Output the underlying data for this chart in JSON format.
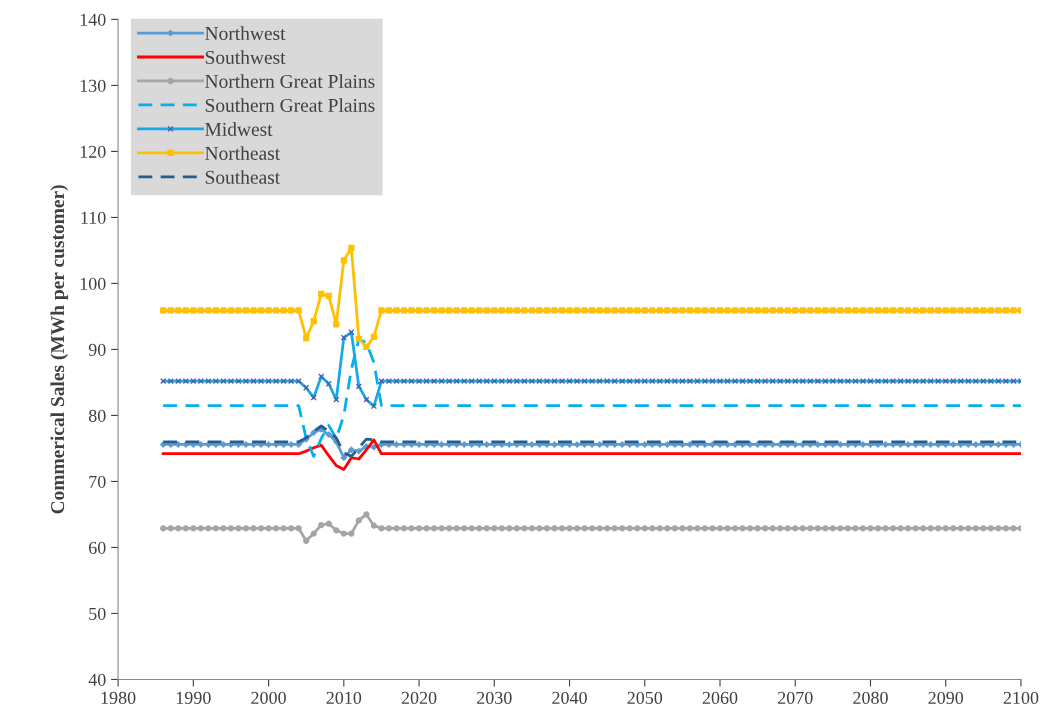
{
  "chart_data": {
    "type": "line",
    "ylabel": "Commerical Sales (MWh per customer)",
    "xlim": [
      1980,
      2100
    ],
    "xticks": [
      1980,
      1990,
      2000,
      2010,
      2020,
      2030,
      2040,
      2050,
      2060,
      2070,
      2080,
      2090,
      2100
    ],
    "ylim": [
      40,
      140
    ],
    "yticks": [
      40,
      50,
      60,
      70,
      80,
      90,
      100,
      110,
      120,
      130,
      140
    ],
    "grid": false,
    "legend": "top left",
    "x": [
      1986,
      1987,
      1988,
      1989,
      1990,
      1991,
      1992,
      1993,
      1994,
      1995,
      1996,
      1997,
      1998,
      1999,
      2000,
      2001,
      2002,
      2003,
      2004,
      2005,
      2006,
      2007,
      2008,
      2009,
      2010,
      2011,
      2012,
      2013,
      2014,
      2015,
      2016,
      2017,
      2018,
      2019,
      2020,
      2021,
      2022,
      2023,
      2024,
      2025,
      2026,
      2027,
      2028,
      2029,
      2030,
      2031,
      2032,
      2033,
      2034,
      2035,
      2036,
      2037,
      2038,
      2039,
      2040,
      2041,
      2042,
      2043,
      2044,
      2045,
      2046,
      2047,
      2048,
      2049,
      2050,
      2051,
      2052,
      2053,
      2054,
      2055,
      2056,
      2057,
      2058,
      2059,
      2060,
      2061,
      2062,
      2063,
      2064,
      2065,
      2066,
      2067,
      2068,
      2069,
      2070,
      2071,
      2072,
      2073,
      2074,
      2075,
      2076,
      2077,
      2078,
      2079,
      2080,
      2081,
      2082,
      2083,
      2084,
      2085,
      2086,
      2087,
      2088,
      2089,
      2090,
      2091,
      2092,
      2093,
      2094,
      2095,
      2096,
      2097,
      2098,
      2099,
      2100
    ],
    "series": [
      {
        "name": "Northwest",
        "color": "#5b9bd5",
        "marker": "diamond",
        "line_style": "solid",
        "values": [
          75.6,
          75.6,
          75.6,
          75.6,
          75.6,
          75.6,
          75.6,
          75.6,
          75.6,
          75.6,
          75.6,
          75.6,
          75.6,
          75.6,
          75.6,
          75.6,
          75.6,
          75.6,
          75.6,
          76.4,
          77.4,
          77.9,
          77.1,
          76.0,
          73.6,
          74.8,
          74.6,
          75.3,
          75.2,
          75.6,
          75.6,
          75.6,
          75.6,
          75.6,
          75.6,
          75.6,
          75.6,
          75.6,
          75.6,
          75.6,
          75.6,
          75.6,
          75.6,
          75.6,
          75.6,
          75.6,
          75.6,
          75.6,
          75.6,
          75.6,
          75.6,
          75.6,
          75.6,
          75.6,
          75.6,
          75.6,
          75.6,
          75.6,
          75.6,
          75.6,
          75.6,
          75.6,
          75.6,
          75.6,
          75.6,
          75.6,
          75.6,
          75.6,
          75.6,
          75.6,
          75.6,
          75.6,
          75.6,
          75.6,
          75.6,
          75.6,
          75.6,
          75.6,
          75.6,
          75.6,
          75.6,
          75.6,
          75.6,
          75.6,
          75.6,
          75.6,
          75.6,
          75.6,
          75.6,
          75.6,
          75.6,
          75.6,
          75.6,
          75.6,
          75.6,
          75.6,
          75.6,
          75.6,
          75.6,
          75.6,
          75.6,
          75.6,
          75.6,
          75.6,
          75.6,
          75.6,
          75.6,
          75.6,
          75.6,
          75.6,
          75.6,
          75.6,
          75.6,
          75.6,
          75.6
        ]
      },
      {
        "name": "Southwest",
        "color": "#ff0000",
        "marker": "none",
        "line_style": "solid",
        "values": [
          74.2,
          74.2,
          74.2,
          74.2,
          74.2,
          74.2,
          74.2,
          74.2,
          74.2,
          74.2,
          74.2,
          74.2,
          74.2,
          74.2,
          74.2,
          74.2,
          74.2,
          74.2,
          74.2,
          74.6,
          75.1,
          75.5,
          73.9,
          72.4,
          71.8,
          73.6,
          73.4,
          74.8,
          76.3,
          74.2,
          74.2,
          74.2,
          74.2,
          74.2,
          74.2,
          74.2,
          74.2,
          74.2,
          74.2,
          74.2,
          74.2,
          74.2,
          74.2,
          74.2,
          74.2,
          74.2,
          74.2,
          74.2,
          74.2,
          74.2,
          74.2,
          74.2,
          74.2,
          74.2,
          74.2,
          74.2,
          74.2,
          74.2,
          74.2,
          74.2,
          74.2,
          74.2,
          74.2,
          74.2,
          74.2,
          74.2,
          74.2,
          74.2,
          74.2,
          74.2,
          74.2,
          74.2,
          74.2,
          74.2,
          74.2,
          74.2,
          74.2,
          74.2,
          74.2,
          74.2,
          74.2,
          74.2,
          74.2,
          74.2,
          74.2,
          74.2,
          74.2,
          74.2,
          74.2,
          74.2,
          74.2,
          74.2,
          74.2,
          74.2,
          74.2,
          74.2,
          74.2,
          74.2,
          74.2,
          74.2,
          74.2,
          74.2,
          74.2,
          74.2,
          74.2,
          74.2,
          74.2,
          74.2,
          74.2,
          74.2,
          74.2,
          74.2,
          74.2,
          74.2,
          74.2
        ]
      },
      {
        "name": "Northern Great Plains",
        "color": "#a5a5a5",
        "marker": "circle",
        "line_style": "solid",
        "values": [
          62.9,
          62.9,
          62.9,
          62.9,
          62.9,
          62.9,
          62.9,
          62.9,
          62.9,
          62.9,
          62.9,
          62.9,
          62.9,
          62.9,
          62.9,
          62.9,
          62.9,
          62.9,
          62.9,
          61.0,
          62.1,
          63.4,
          63.6,
          62.6,
          62.1,
          62.1,
          64.1,
          65.0,
          63.3,
          62.9,
          62.9,
          62.9,
          62.9,
          62.9,
          62.9,
          62.9,
          62.9,
          62.9,
          62.9,
          62.9,
          62.9,
          62.9,
          62.9,
          62.9,
          62.9,
          62.9,
          62.9,
          62.9,
          62.9,
          62.9,
          62.9,
          62.9,
          62.9,
          62.9,
          62.9,
          62.9,
          62.9,
          62.9,
          62.9,
          62.9,
          62.9,
          62.9,
          62.9,
          62.9,
          62.9,
          62.9,
          62.9,
          62.9,
          62.9,
          62.9,
          62.9,
          62.9,
          62.9,
          62.9,
          62.9,
          62.9,
          62.9,
          62.9,
          62.9,
          62.9,
          62.9,
          62.9,
          62.9,
          62.9,
          62.9,
          62.9,
          62.9,
          62.9,
          62.9,
          62.9,
          62.9,
          62.9,
          62.9,
          62.9,
          62.9,
          62.9,
          62.9,
          62.9,
          62.9,
          62.9,
          62.9,
          62.9,
          62.9,
          62.9,
          62.9,
          62.9,
          62.9,
          62.9,
          62.9,
          62.9,
          62.9,
          62.9,
          62.9,
          62.9,
          62.9
        ]
      },
      {
        "name": "Southern Great Plains",
        "color": "#00b0f0",
        "marker": "none",
        "line_style": "dashed",
        "values": [
          81.5,
          81.5,
          81.5,
          81.5,
          81.5,
          81.5,
          81.5,
          81.5,
          81.5,
          81.5,
          81.5,
          81.5,
          81.5,
          81.5,
          81.5,
          81.5,
          81.5,
          81.5,
          81.5,
          76.5,
          73.8,
          76.5,
          78.5,
          76.5,
          80.0,
          87.0,
          91.5,
          91.0,
          88.0,
          81.5,
          81.5,
          81.5,
          81.5,
          81.5,
          81.5,
          81.5,
          81.5,
          81.5,
          81.5,
          81.5,
          81.5,
          81.5,
          81.5,
          81.5,
          81.5,
          81.5,
          81.5,
          81.5,
          81.5,
          81.5,
          81.5,
          81.5,
          81.5,
          81.5,
          81.5,
          81.5,
          81.5,
          81.5,
          81.5,
          81.5,
          81.5,
          81.5,
          81.5,
          81.5,
          81.5,
          81.5,
          81.5,
          81.5,
          81.5,
          81.5,
          81.5,
          81.5,
          81.5,
          81.5,
          81.5,
          81.5,
          81.5,
          81.5,
          81.5,
          81.5,
          81.5,
          81.5,
          81.5,
          81.5,
          81.5,
          81.5,
          81.5,
          81.5,
          81.5,
          81.5,
          81.5,
          81.5,
          81.5,
          81.5,
          81.5,
          81.5,
          81.5,
          81.5,
          81.5,
          81.5,
          81.5,
          81.5,
          81.5,
          81.5,
          81.5,
          81.5,
          81.5,
          81.5,
          81.5,
          81.5,
          81.5,
          81.5,
          81.5,
          81.5,
          81.5
        ]
      },
      {
        "name": "Midwest",
        "color": "#1aa7e8",
        "marker": "cross",
        "line_style": "solid",
        "values": [
          85.2,
          85.2,
          85.2,
          85.2,
          85.2,
          85.2,
          85.2,
          85.2,
          85.2,
          85.2,
          85.2,
          85.2,
          85.2,
          85.2,
          85.2,
          85.2,
          85.2,
          85.2,
          85.2,
          84.2,
          82.7,
          85.9,
          84.8,
          82.4,
          91.8,
          92.6,
          84.4,
          82.4,
          81.4,
          85.2,
          85.2,
          85.2,
          85.2,
          85.2,
          85.2,
          85.2,
          85.2,
          85.2,
          85.2,
          85.2,
          85.2,
          85.2,
          85.2,
          85.2,
          85.2,
          85.2,
          85.2,
          85.2,
          85.2,
          85.2,
          85.2,
          85.2,
          85.2,
          85.2,
          85.2,
          85.2,
          85.2,
          85.2,
          85.2,
          85.2,
          85.2,
          85.2,
          85.2,
          85.2,
          85.2,
          85.2,
          85.2,
          85.2,
          85.2,
          85.2,
          85.2,
          85.2,
          85.2,
          85.2,
          85.2,
          85.2,
          85.2,
          85.2,
          85.2,
          85.2,
          85.2,
          85.2,
          85.2,
          85.2,
          85.2,
          85.2,
          85.2,
          85.2,
          85.2,
          85.2,
          85.2,
          85.2,
          85.2,
          85.2,
          85.2,
          85.2,
          85.2,
          85.2,
          85.2,
          85.2,
          85.2,
          85.2,
          85.2,
          85.2,
          85.2,
          85.2,
          85.2,
          85.2,
          85.2,
          85.2,
          85.2,
          85.2,
          85.2,
          85.2,
          85.2
        ]
      },
      {
        "name": "Northeast",
        "color": "#ffc000",
        "marker": "square",
        "line_style": "solid",
        "values": [
          95.9,
          95.9,
          95.9,
          95.9,
          95.9,
          95.9,
          95.9,
          95.9,
          95.9,
          95.9,
          95.9,
          95.9,
          95.9,
          95.9,
          95.9,
          95.9,
          95.9,
          95.9,
          95.9,
          91.7,
          94.3,
          98.4,
          98.1,
          93.8,
          103.5,
          105.4,
          91.6,
          90.4,
          91.9,
          95.9,
          95.9,
          95.9,
          95.9,
          95.9,
          95.9,
          95.9,
          95.9,
          95.9,
          95.9,
          95.9,
          95.9,
          95.9,
          95.9,
          95.9,
          95.9,
          95.9,
          95.9,
          95.9,
          95.9,
          95.9,
          95.9,
          95.9,
          95.9,
          95.9,
          95.9,
          95.9,
          95.9,
          95.9,
          95.9,
          95.9,
          95.9,
          95.9,
          95.9,
          95.9,
          95.9,
          95.9,
          95.9,
          95.9,
          95.9,
          95.9,
          95.9,
          95.9,
          95.9,
          95.9,
          95.9,
          95.9,
          95.9,
          95.9,
          95.9,
          95.9,
          95.9,
          95.9,
          95.9,
          95.9,
          95.9,
          95.9,
          95.9,
          95.9,
          95.9,
          95.9,
          95.9,
          95.9,
          95.9,
          95.9,
          95.9,
          95.9,
          95.9,
          95.9,
          95.9,
          95.9,
          95.9,
          95.9,
          95.9,
          95.9,
          95.9,
          95.9,
          95.9,
          95.9,
          95.9,
          95.9,
          95.9,
          95.9,
          95.9,
          95.9,
          95.9
        ]
      },
      {
        "name": "Southeast",
        "color": "#255e91",
        "marker": "none",
        "line_style": "dashed",
        "values": [
          76.0,
          76.0,
          76.0,
          76.0,
          76.0,
          76.0,
          76.0,
          76.0,
          76.0,
          76.0,
          76.0,
          76.0,
          76.0,
          76.0,
          76.0,
          76.0,
          76.0,
          76.0,
          76.0,
          76.6,
          77.6,
          78.4,
          77.6,
          76.6,
          74.3,
          73.8,
          75.1,
          76.4,
          76.3,
          76.0,
          76.0,
          76.0,
          76.0,
          76.0,
          76.0,
          76.0,
          76.0,
          76.0,
          76.0,
          76.0,
          76.0,
          76.0,
          76.0,
          76.0,
          76.0,
          76.0,
          76.0,
          76.0,
          76.0,
          76.0,
          76.0,
          76.0,
          76.0,
          76.0,
          76.0,
          76.0,
          76.0,
          76.0,
          76.0,
          76.0,
          76.0,
          76.0,
          76.0,
          76.0,
          76.0,
          76.0,
          76.0,
          76.0,
          76.0,
          76.0,
          76.0,
          76.0,
          76.0,
          76.0,
          76.0,
          76.0,
          76.0,
          76.0,
          76.0,
          76.0,
          76.0,
          76.0,
          76.0,
          76.0,
          76.0,
          76.0,
          76.0,
          76.0,
          76.0,
          76.0,
          76.0,
          76.0,
          76.0,
          76.0,
          76.0,
          76.0,
          76.0,
          76.0,
          76.0,
          76.0,
          76.0,
          76.0,
          76.0,
          76.0,
          76.0,
          76.0,
          76.0,
          76.0,
          76.0,
          76.0,
          76.0,
          76.0,
          76.0,
          76.0,
          76.0
        ]
      }
    ]
  }
}
